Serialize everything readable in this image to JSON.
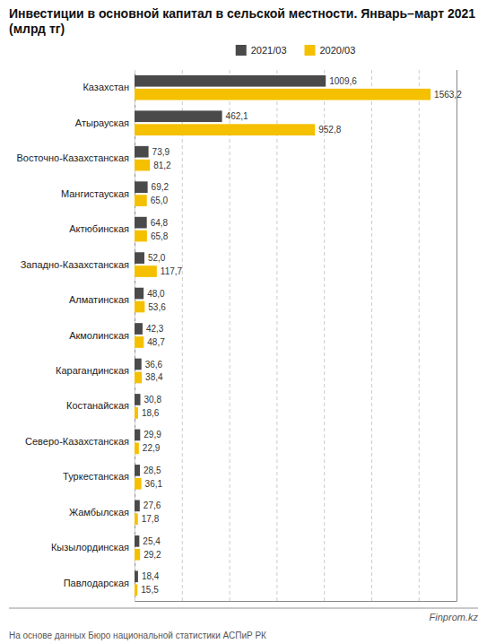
{
  "chart_data": {
    "type": "bar",
    "orientation": "horizontal",
    "title": "Инвестиции в основной капитал в сельской местности. Январь–март 2021 (млрд тг)",
    "categories": [
      "Казахстан",
      "Атырауская",
      "Восточно-Казахстанская",
      "Мангистауская",
      "Актюбинская",
      "Западно-Казахстанская",
      "Алматинская",
      "Акмолинская",
      "Карагандинская",
      "Костанайская",
      "Северо-Казахстанская",
      "Туркестанская",
      "Жамбылская",
      "Кызылординская",
      "Павлодарская"
    ],
    "series": [
      {
        "name": "2021/03",
        "color": "#4a4a4a",
        "values": [
          1009.6,
          462.1,
          73.9,
          69.2,
          64.8,
          52.0,
          48.0,
          42.3,
          36.6,
          30.8,
          29.9,
          28.5,
          27.6,
          25.4,
          18.4
        ],
        "value_labels": [
          "1009,6",
          "462,1",
          "73,9",
          "69,2",
          "64,8",
          "52,0",
          "48,0",
          "42,3",
          "36,6",
          "30,8",
          "29,9",
          "28,5",
          "27,6",
          "25,4",
          "18,4"
        ]
      },
      {
        "name": "2020/03",
        "color": "#f5c000",
        "values": [
          1563.2,
          952.8,
          81.2,
          65.0,
          65.8,
          117.7,
          53.6,
          48.7,
          38.4,
          18.6,
          22.9,
          36.1,
          17.8,
          29.2,
          15.5
        ],
        "value_labels": [
          "1563,2",
          "952,8",
          "81,2",
          "65,0",
          "65,8",
          "117,7",
          "53,6",
          "48,7",
          "38,4",
          "18,6",
          "22,9",
          "36,1",
          "17,8",
          "29,2",
          "15,5"
        ]
      }
    ],
    "xlim": [
      0,
      1700
    ],
    "xticks": [
      0,
      250,
      500,
      750,
      1000,
      1250,
      1500
    ],
    "grid": true,
    "tick_labels": "y",
    "data_labels": true,
    "legend": "top",
    "annotations": [
      "Finprom.kz",
      "На основе данных Бюро национальной статистики АСПиР РК"
    ]
  }
}
